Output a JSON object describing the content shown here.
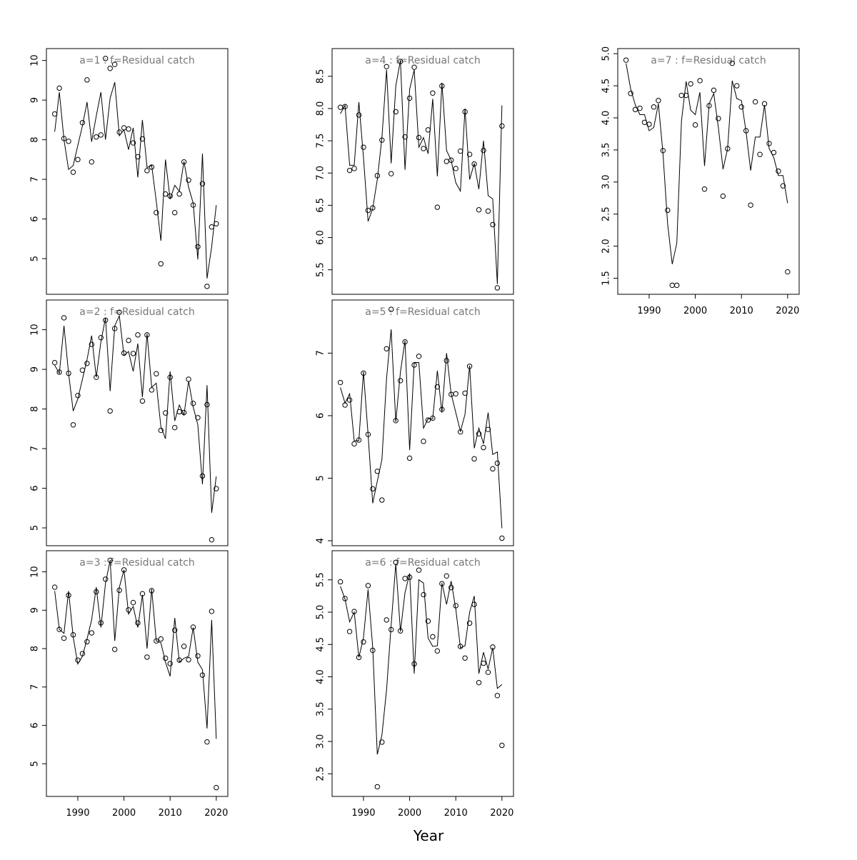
{
  "figure": {
    "xlabel": "Year"
  },
  "chart_data": [
    {
      "type": "scatter",
      "title": "a=1 : f=Residual catch",
      "ylim": [
        4.1,
        10.3
      ],
      "yticks": [
        5,
        6,
        7,
        8,
        9,
        10
      ],
      "xlim": [
        1983.2,
        2022.5
      ],
      "xticks": [],
      "x": [
        1985,
        1986,
        1987,
        1988,
        1989,
        1990,
        1991,
        1992,
        1993,
        1994,
        1995,
        1996,
        1997,
        1998,
        1999,
        2000,
        2001,
        2002,
        2003,
        2004,
        2005,
        2006,
        2007,
        2008,
        2009,
        2010,
        2011,
        2012,
        2013,
        2014,
        2015,
        2016,
        2017,
        2018,
        2019,
        2020
      ],
      "observed": [
        8.65,
        9.3,
        8.03,
        7.96,
        7.18,
        7.5,
        8.43,
        9.51,
        7.44,
        8.07,
        8.12,
        10.05,
        9.8,
        9.9,
        8.19,
        8.3,
        8.27,
        7.92,
        7.57,
        8.02,
        7.22,
        7.31,
        6.16,
        4.87,
        6.63,
        6.58,
        6.16,
        6.63,
        7.44,
        6.98,
        6.35,
        5.3,
        6.89,
        4.3,
        5.8,
        5.88
      ],
      "fitted": [
        8.2,
        9.2,
        8.0,
        7.25,
        7.35,
        7.85,
        8.35,
        8.95,
        7.95,
        8.6,
        9.2,
        8.0,
        9.05,
        9.45,
        8.1,
        8.25,
        7.75,
        8.3,
        7.05,
        8.5,
        7.3,
        7.35,
        6.45,
        5.45,
        7.5,
        6.5,
        6.85,
        6.7,
        7.45,
        6.8,
        6.4,
        4.98,
        7.65,
        4.5,
        5.3,
        6.35
      ]
    },
    {
      "type": "scatter",
      "title": "a=2 : f=Residual catch",
      "ylim": [
        4.55,
        10.75
      ],
      "yticks": [
        5,
        6,
        7,
        8,
        9,
        10
      ],
      "xlim": [
        1983.2,
        2022.5
      ],
      "xticks": [],
      "x": [
        1985,
        1986,
        1987,
        1988,
        1989,
        1990,
        1991,
        1992,
        1993,
        1994,
        1995,
        1996,
        1997,
        1998,
        1999,
        2000,
        2001,
        2002,
        2003,
        2004,
        2005,
        2006,
        2007,
        2008,
        2009,
        2010,
        2011,
        2012,
        2013,
        2014,
        2015,
        2016,
        2017,
        2018,
        2019,
        2020
      ],
      "observed": [
        9.17,
        8.93,
        10.3,
        8.9,
        7.6,
        8.34,
        8.98,
        9.15,
        9.63,
        8.8,
        9.8,
        10.24,
        7.95,
        10.03,
        10.44,
        9.41,
        9.73,
        9.4,
        9.87,
        8.2,
        9.87,
        8.48,
        8.89,
        7.46,
        7.9,
        8.8,
        7.53,
        7.93,
        7.91,
        8.75,
        8.14,
        7.78,
        6.31,
        8.11,
        4.7,
        5.99
      ],
      "fitted": [
        9.1,
        8.9,
        10.1,
        8.9,
        7.95,
        8.25,
        8.75,
        9.25,
        9.85,
        8.8,
        9.7,
        10.3,
        8.45,
        10.1,
        10.35,
        9.35,
        9.45,
        8.95,
        9.65,
        8.3,
        9.9,
        8.55,
        8.65,
        7.55,
        7.25,
        8.95,
        7.7,
        8.1,
        7.85,
        8.7,
        8.05,
        7.6,
        6.1,
        8.6,
        5.38,
        6.3
      ]
    },
    {
      "type": "scatter",
      "title": "a=3 : f=Residual catch",
      "ylim": [
        4.15,
        10.55
      ],
      "yticks": [
        5,
        6,
        7,
        8,
        9,
        10
      ],
      "xlim": [
        1983.2,
        2022.5
      ],
      "xticks": [
        1990,
        2000,
        2010,
        2020
      ],
      "x": [
        1985,
        1986,
        1987,
        1988,
        1989,
        1990,
        1991,
        1992,
        1993,
        1994,
        1995,
        1996,
        1997,
        1998,
        1999,
        2000,
        2001,
        2002,
        2003,
        2004,
        2005,
        2006,
        2007,
        2008,
        2009,
        2010,
        2011,
        2012,
        2013,
        2014,
        2015,
        2016,
        2017,
        2018,
        2019,
        2020
      ],
      "observed": [
        9.6,
        8.5,
        8.27,
        9.39,
        8.36,
        7.7,
        7.87,
        8.18,
        8.41,
        9.48,
        8.67,
        9.81,
        10.3,
        7.98,
        9.52,
        10.05,
        9.01,
        9.2,
        8.67,
        9.43,
        7.78,
        9.51,
        8.2,
        8.25,
        7.75,
        7.61,
        8.48,
        7.7,
        8.06,
        7.71,
        8.56,
        7.81,
        7.31,
        5.57,
        8.97,
        4.38
      ],
      "fitted": [
        9.5,
        8.5,
        8.4,
        9.5,
        8.3,
        7.6,
        7.8,
        8.25,
        8.75,
        9.6,
        8.55,
        9.7,
        10.3,
        8.2,
        9.6,
        10.05,
        8.9,
        9.1,
        8.55,
        9.4,
        8.0,
        9.55,
        8.2,
        8.15,
        7.65,
        7.28,
        8.8,
        7.65,
        7.75,
        7.8,
        8.55,
        7.65,
        7.45,
        5.92,
        8.75,
        5.65
      ]
    },
    {
      "type": "scatter",
      "title": "a=4 : f=Residual catch",
      "ylim": [
        5.12,
        8.93
      ],
      "yticks": [
        5.5,
        6.0,
        6.5,
        7.0,
        7.5,
        8.0,
        8.5
      ],
      "xlim": [
        1983.2,
        2022.5
      ],
      "xticks": [],
      "x": [
        1985,
        1986,
        1987,
        1988,
        1989,
        1990,
        1991,
        1992,
        1993,
        1994,
        1995,
        1996,
        1997,
        1998,
        1999,
        2000,
        2001,
        2002,
        2003,
        2004,
        2005,
        2006,
        2007,
        2008,
        2009,
        2010,
        2011,
        2012,
        2013,
        2014,
        2015,
        2016,
        2017,
        2018,
        2019,
        2020
      ],
      "observed": [
        8.02,
        8.03,
        7.04,
        7.07,
        7.9,
        7.4,
        6.42,
        6.46,
        6.96,
        7.51,
        8.65,
        6.99,
        7.95,
        8.73,
        7.56,
        8.16,
        8.64,
        7.55,
        7.38,
        7.67,
        8.24,
        6.47,
        8.35,
        7.18,
        7.2,
        7.07,
        7.34,
        7.95,
        7.29,
        7.14,
        6.43,
        7.35,
        6.41,
        6.2,
        5.22,
        7.73
      ],
      "fitted": [
        7.92,
        8.05,
        7.12,
        7.12,
        8.1,
        7.25,
        6.25,
        6.45,
        6.9,
        7.55,
        8.6,
        7.15,
        8.35,
        8.75,
        7.05,
        8.3,
        8.6,
        7.4,
        7.55,
        7.3,
        8.15,
        6.95,
        8.4,
        7.35,
        7.2,
        6.85,
        6.72,
        8.0,
        6.9,
        7.15,
        6.75,
        7.5,
        6.65,
        6.6,
        5.28,
        8.05
      ]
    },
    {
      "type": "scatter",
      "title": "a=5 : f=Residual catch",
      "ylim": [
        3.92,
        7.85
      ],
      "yticks": [
        4,
        5,
        6,
        7
      ],
      "xlim": [
        1983.2,
        2022.5
      ],
      "xticks": [],
      "x": [
        1985,
        1986,
        1987,
        1988,
        1989,
        1990,
        1991,
        1992,
        1993,
        1994,
        1995,
        1996,
        1997,
        1998,
        1999,
        2000,
        2001,
        2002,
        2003,
        2004,
        2005,
        2006,
        2007,
        2008,
        2009,
        2010,
        2011,
        2012,
        2013,
        2014,
        2015,
        2016,
        2017,
        2018,
        2019,
        2020
      ],
      "observed": [
        6.53,
        6.17,
        6.25,
        5.55,
        5.61,
        6.68,
        5.7,
        4.83,
        5.11,
        4.65,
        7.07,
        7.7,
        5.92,
        6.56,
        7.18,
        5.32,
        6.81,
        6.95,
        5.59,
        5.93,
        5.96,
        6.46,
        6.1,
        6.88,
        6.34,
        6.35,
        5.74,
        6.36,
        6.79,
        5.31,
        5.71,
        5.49,
        5.78,
        5.15,
        5.24,
        4.04
      ],
      "fitted": [
        6.45,
        6.2,
        6.35,
        5.6,
        5.6,
        6.7,
        5.7,
        4.6,
        4.95,
        5.3,
        6.6,
        7.38,
        5.9,
        6.7,
        7.2,
        5.45,
        6.85,
        6.85,
        5.8,
        5.95,
        5.95,
        6.72,
        6.05,
        7.0,
        6.35,
        6.05,
        5.75,
        6.02,
        6.8,
        5.48,
        5.8,
        5.55,
        6.05,
        5.38,
        5.42,
        4.2
      ]
    },
    {
      "type": "scatter",
      "title": "a=6 : f=Residual catch",
      "ylim": [
        2.15,
        5.95
      ],
      "yticks": [
        2.5,
        3.0,
        3.5,
        4.0,
        4.5,
        5.0,
        5.5
      ],
      "xlim": [
        1983.2,
        2022.5
      ],
      "xticks": [
        1990,
        2000,
        2010,
        2020
      ],
      "x": [
        1985,
        1986,
        1987,
        1988,
        1989,
        1990,
        1991,
        1992,
        1993,
        1994,
        1995,
        1996,
        1997,
        1998,
        1999,
        2000,
        2001,
        2002,
        2003,
        2004,
        2005,
        2006,
        2007,
        2008,
        2009,
        2010,
        2011,
        2012,
        2013,
        2014,
        2015,
        2016,
        2017,
        2018,
        2019,
        2020
      ],
      "observed": [
        5.47,
        5.21,
        4.7,
        5.01,
        4.3,
        4.54,
        5.41,
        4.41,
        2.3,
        2.99,
        4.88,
        4.73,
        5.77,
        4.71,
        5.52,
        5.54,
        4.2,
        5.65,
        5.27,
        4.86,
        4.62,
        4.4,
        5.44,
        5.56,
        5.38,
        5.1,
        4.47,
        4.29,
        4.83,
        5.12,
        3.91,
        4.21,
        4.07,
        4.46,
        3.71,
        2.94
      ],
      "fitted": [
        5.4,
        5.2,
        4.85,
        5.0,
        4.3,
        4.6,
        5.35,
        4.45,
        2.8,
        3.1,
        3.8,
        4.8,
        5.75,
        4.7,
        5.3,
        5.6,
        4.05,
        5.5,
        5.45,
        4.6,
        4.47,
        4.48,
        5.45,
        5.12,
        5.48,
        5.05,
        4.45,
        4.48,
        5.0,
        5.25,
        4.05,
        4.38,
        4.12,
        4.45,
        3.82,
        3.88
      ]
    },
    {
      "type": "scatter",
      "title": "a=7 : f=Residual catch",
      "ylim": [
        1.25,
        5.08
      ],
      "yticks": [
        1.5,
        2.0,
        2.5,
        3.0,
        3.5,
        4.0,
        4.5,
        5.0
      ],
      "xlim": [
        1983.2,
        2022.5
      ],
      "xticks": [
        1990,
        2000,
        2010,
        2020
      ],
      "x": [
        1985,
        1986,
        1987,
        1988,
        1989,
        1990,
        1991,
        1992,
        1993,
        1994,
        1995,
        1996,
        1997,
        1998,
        1999,
        2000,
        2001,
        2002,
        2003,
        2004,
        2005,
        2006,
        2007,
        2008,
        2009,
        2010,
        2011,
        2012,
        2013,
        2014,
        2015,
        2016,
        2017,
        2018,
        2019,
        2020
      ],
      "observed": [
        4.9,
        4.38,
        4.13,
        4.15,
        3.93,
        3.9,
        4.17,
        4.27,
        3.49,
        2.56,
        1.39,
        1.39,
        4.35,
        4.35,
        4.53,
        3.89,
        4.58,
        2.89,
        4.19,
        4.43,
        3.99,
        2.78,
        3.52,
        4.85,
        4.5,
        4.17,
        3.8,
        2.64,
        4.25,
        3.43,
        4.22,
        3.6,
        3.46,
        3.17,
        2.94,
        1.6
      ],
      "fitted": [
        4.85,
        4.45,
        4.2,
        4.05,
        4.05,
        3.8,
        3.85,
        4.22,
        3.45,
        2.35,
        1.72,
        2.05,
        3.95,
        4.57,
        4.12,
        4.05,
        4.4,
        3.25,
        4.22,
        4.38,
        3.85,
        3.2,
        3.52,
        4.58,
        4.3,
        4.27,
        3.78,
        3.18,
        3.7,
        3.7,
        4.2,
        3.52,
        3.38,
        3.1,
        3.1,
        2.67
      ]
    }
  ]
}
